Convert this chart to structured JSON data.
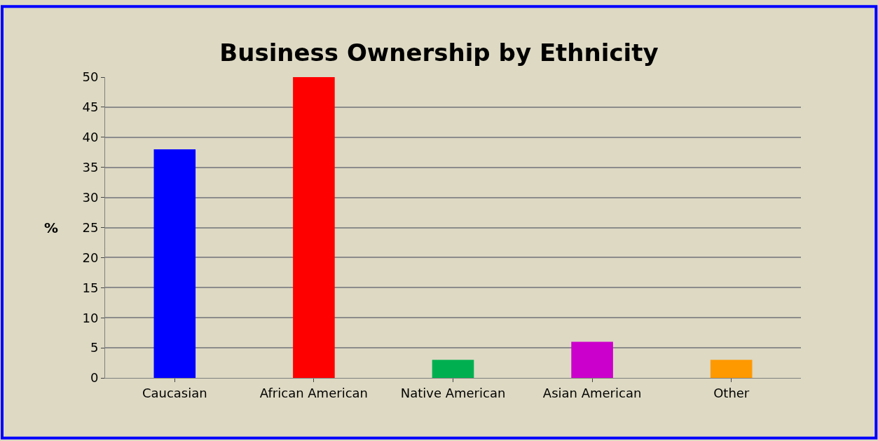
{
  "chart_data": {
    "type": "bar",
    "title": "Business Ownership by Ethnicity",
    "ylabel": "%",
    "categories": [
      "Caucasian",
      "African American",
      "Native American",
      "Asian American",
      "Other"
    ],
    "values": [
      38,
      50,
      3,
      6,
      3
    ],
    "colors": [
      "#0000ff",
      "#ff0000",
      "#00b050",
      "#cc00cc",
      "#ff9900"
    ],
    "ylim": [
      0,
      50
    ],
    "yticks": [
      0,
      5,
      10,
      15,
      20,
      25,
      30,
      35,
      40,
      45,
      50
    ],
    "grid": "y"
  }
}
